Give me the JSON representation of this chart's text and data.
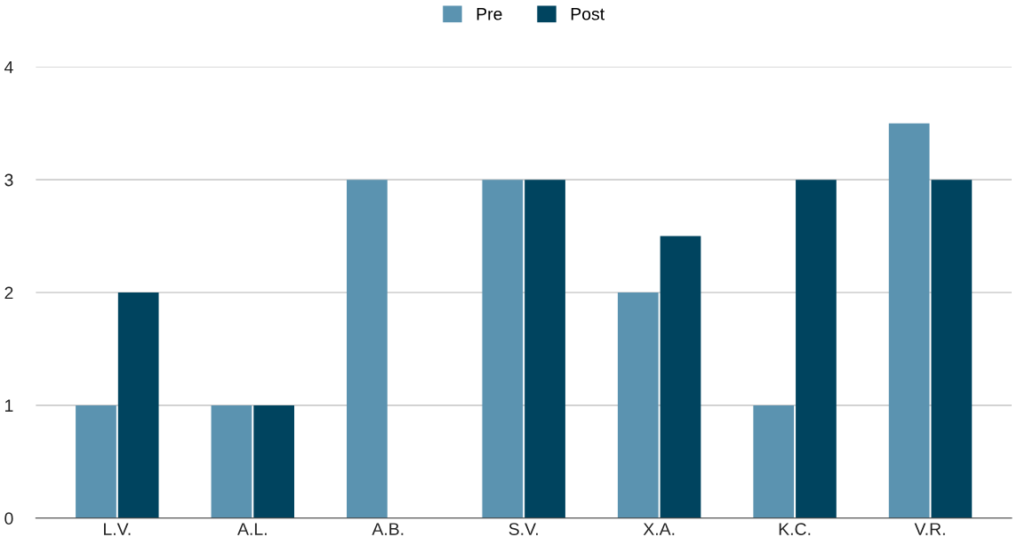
{
  "chart_data": {
    "type": "bar",
    "categories": [
      "L.V.",
      "A.L.",
      "A.B.",
      "S.V.",
      "X.A.",
      "K.C.",
      "V.R."
    ],
    "series": [
      {
        "name": "Pre",
        "color": "#5b93b0",
        "values": [
          1,
          1,
          3,
          3,
          2,
          1,
          3.5
        ]
      },
      {
        "name": "Post",
        "color": "#00445f",
        "values": [
          2,
          1,
          0,
          3,
          2.5,
          3,
          3
        ]
      }
    ],
    "ylim": [
      0,
      4
    ],
    "yticks": [
      0,
      1,
      2,
      3,
      4
    ],
    "grid": "y",
    "legend": "top"
  }
}
